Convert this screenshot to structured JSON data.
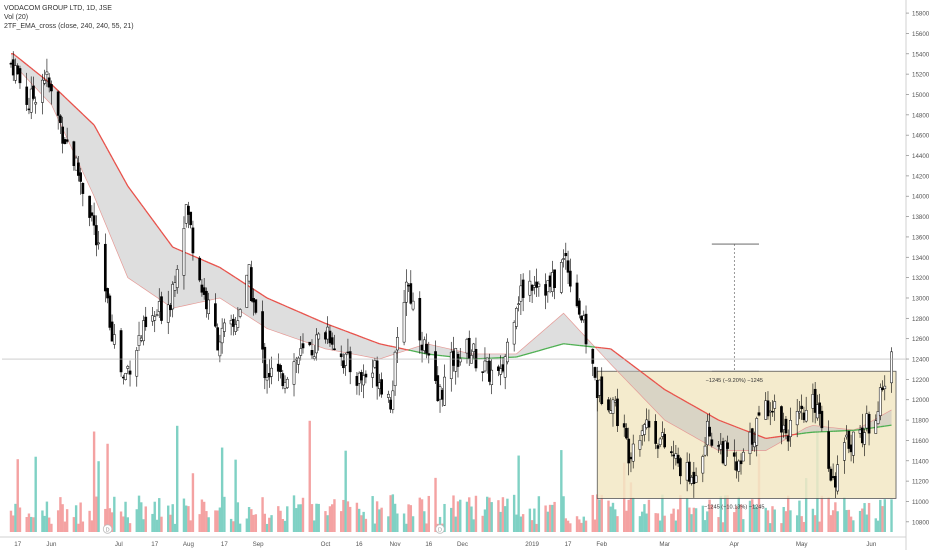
{
  "header": {
    "symbol_line": "VODACOM GROUP LTD, 1D, JSE",
    "volume_line": "Vol (20)",
    "indicator_line": "2TF_EMA_cross (close, 240, 240, 55, 21)"
  },
  "colors": {
    "up_candle": "#ffffff",
    "down_candle": "#000000",
    "candle_border": "#000000",
    "vol_up": "#7fd1c4",
    "vol_down": "#f4a2a2",
    "ema_slow_bear": "#e8514a",
    "ema_fast": "#4caf50",
    "cloud_fill": "#bdbdbd",
    "range_box_fill": "#f2e8c4",
    "range_box_border": "#555555"
  },
  "chart_data": {
    "type": "candlestick",
    "title": "VODACOM GROUP LTD, 1D, JSE",
    "y_ticks": [
      10800,
      11000,
      11200,
      11400,
      11600,
      11800,
      12000,
      12200,
      12400,
      12600,
      12800,
      13000,
      13200,
      13400,
      13600,
      13800,
      14000,
      14200,
      14400,
      14600,
      14800,
      15000,
      15200,
      15400,
      15600,
      15800
    ],
    "ylim": [
      10700,
      15850
    ],
    "current_price_line": 12400,
    "x_ticks": [
      {
        "label": "17",
        "date": "2018-05-17"
      },
      {
        "label": "Jun",
        "date": "2018-06-01"
      },
      {
        "label": "Jul",
        "date": "2018-07-01"
      },
      {
        "label": "17",
        "date": "2018-07-17"
      },
      {
        "label": "Aug",
        "date": "2018-08-01"
      },
      {
        "label": "17",
        "date": "2018-08-17"
      },
      {
        "label": "Sep",
        "date": "2018-09-01"
      },
      {
        "label": "Oct",
        "date": "2018-10-01"
      },
      {
        "label": "16",
        "date": "2018-10-16"
      },
      {
        "label": "Nov",
        "date": "2018-11-01"
      },
      {
        "label": "16",
        "date": "2018-11-16"
      },
      {
        "label": "Dec",
        "date": "2018-12-01"
      },
      {
        "label": "2019",
        "date": "2019-01-01"
      },
      {
        "label": "17",
        "date": "2019-01-17"
      },
      {
        "label": "Feb",
        "date": "2019-02-01"
      },
      {
        "label": "Mar",
        "date": "2019-03-01"
      },
      {
        "label": "Apr",
        "date": "2019-04-01"
      },
      {
        "label": "May",
        "date": "2019-05-01"
      },
      {
        "label": "Jun",
        "date": "2019-06-01"
      }
    ],
    "close_path": [
      {
        "date": "2018-05-15",
        "close": 15300
      },
      {
        "date": "2018-05-22",
        "close": 14900
      },
      {
        "date": "2018-05-29",
        "close": 15200
      },
      {
        "date": "2018-06-05",
        "close": 14700
      },
      {
        "date": "2018-06-12",
        "close": 14300
      },
      {
        "date": "2018-06-19",
        "close": 13800
      },
      {
        "date": "2018-06-26",
        "close": 12900
      },
      {
        "date": "2018-07-03",
        "close": 12200
      },
      {
        "date": "2018-07-10",
        "close": 12600
      },
      {
        "date": "2018-07-17",
        "close": 12800
      },
      {
        "date": "2018-07-24",
        "close": 13000
      },
      {
        "date": "2018-07-31",
        "close": 13900
      },
      {
        "date": "2018-08-07",
        "close": 13100
      },
      {
        "date": "2018-08-14",
        "close": 12600
      },
      {
        "date": "2018-08-21",
        "close": 12700
      },
      {
        "date": "2018-08-28",
        "close": 13200
      },
      {
        "date": "2018-09-04",
        "close": 12300
      },
      {
        "date": "2018-09-11",
        "close": 12200
      },
      {
        "date": "2018-09-18",
        "close": 12400
      },
      {
        "date": "2018-09-25",
        "close": 12500
      },
      {
        "date": "2018-10-02",
        "close": 12700
      },
      {
        "date": "2018-10-09",
        "close": 12400
      },
      {
        "date": "2018-10-16",
        "close": 12200
      },
      {
        "date": "2018-10-23",
        "close": 12300
      },
      {
        "date": "2018-10-30",
        "close": 12000
      },
      {
        "date": "2018-11-06",
        "close": 13200
      },
      {
        "date": "2018-11-13",
        "close": 12600
      },
      {
        "date": "2018-11-20",
        "close": 12000
      },
      {
        "date": "2018-11-27",
        "close": 12400
      },
      {
        "date": "2018-12-04",
        "close": 12500
      },
      {
        "date": "2018-12-11",
        "close": 12300
      },
      {
        "date": "2018-12-18",
        "close": 12200
      },
      {
        "date": "2018-12-25",
        "close": 13000
      },
      {
        "date": "2019-01-02",
        "close": 13200
      },
      {
        "date": "2019-01-09",
        "close": 13100
      },
      {
        "date": "2019-01-16",
        "close": 13400
      },
      {
        "date": "2019-01-23",
        "close": 12800
      },
      {
        "date": "2019-01-30",
        "close": 12100
      },
      {
        "date": "2019-02-06",
        "close": 12000
      },
      {
        "date": "2019-02-13",
        "close": 11500
      },
      {
        "date": "2019-02-20",
        "close": 11800
      },
      {
        "date": "2019-02-27",
        "close": 11600
      },
      {
        "date": "2019-03-06",
        "close": 11400
      },
      {
        "date": "2019-03-13",
        "close": 11200
      },
      {
        "date": "2019-03-20",
        "close": 11700
      },
      {
        "date": "2019-03-27",
        "close": 11500
      },
      {
        "date": "2019-04-03",
        "close": 11300
      },
      {
        "date": "2019-04-10",
        "close": 11700
      },
      {
        "date": "2019-04-17",
        "close": 12000
      },
      {
        "date": "2019-04-24",
        "close": 11700
      },
      {
        "date": "2019-05-01",
        "close": 11800
      },
      {
        "date": "2019-05-08",
        "close": 12000
      },
      {
        "date": "2019-05-15",
        "close": 11200
      },
      {
        "date": "2019-05-22",
        "close": 11600
      },
      {
        "date": "2019-05-29",
        "close": 11700
      },
      {
        "date": "2019-06-05",
        "close": 12000
      },
      {
        "date": "2019-06-10",
        "close": 12400
      }
    ],
    "ema_slow_path": [
      {
        "date": "2018-05-15",
        "value": 15400
      },
      {
        "date": "2018-06-01",
        "value": 15100
      },
      {
        "date": "2018-06-20",
        "value": 14700
      },
      {
        "date": "2018-07-05",
        "value": 14100
      },
      {
        "date": "2018-07-25",
        "value": 13500
      },
      {
        "date": "2018-08-15",
        "value": 13300
      },
      {
        "date": "2018-09-05",
        "value": 13000
      },
      {
        "date": "2018-10-01",
        "value": 12750
      },
      {
        "date": "2018-10-25",
        "value": 12550
      },
      {
        "date": "2018-11-15",
        "value": 12450
      },
      {
        "date": "2018-12-05",
        "value": 12400
      },
      {
        "date": "2018-12-25",
        "value": 12420
      },
      {
        "date": "2019-01-15",
        "value": 12550
      },
      {
        "date": "2019-02-05",
        "value": 12500
      },
      {
        "date": "2019-03-01",
        "value": 12100
      },
      {
        "date": "2019-03-25",
        "value": 11800
      },
      {
        "date": "2019-04-15",
        "value": 11620
      },
      {
        "date": "2019-05-05",
        "value": 11680
      },
      {
        "date": "2019-05-25",
        "value": 11700
      },
      {
        "date": "2019-06-10",
        "value": 11750
      }
    ],
    "ema_fast_path": [
      {
        "date": "2018-05-15",
        "value": 15300
      },
      {
        "date": "2018-06-01",
        "value": 14900
      },
      {
        "date": "2018-06-20",
        "value": 14000
      },
      {
        "date": "2018-07-05",
        "value": 13200
      },
      {
        "date": "2018-07-25",
        "value": 12900
      },
      {
        "date": "2018-08-15",
        "value": 13000
      },
      {
        "date": "2018-09-05",
        "value": 12700
      },
      {
        "date": "2018-10-01",
        "value": 12500
      },
      {
        "date": "2018-10-25",
        "value": 12400
      },
      {
        "date": "2018-11-15",
        "value": 12550
      },
      {
        "date": "2018-12-05",
        "value": 12450
      },
      {
        "date": "2018-12-25",
        "value": 12450
      },
      {
        "date": "2019-01-15",
        "value": 12850
      },
      {
        "date": "2019-02-05",
        "value": 12350
      },
      {
        "date": "2019-03-01",
        "value": 11800
      },
      {
        "date": "2019-03-25",
        "value": 11500
      },
      {
        "date": "2019-04-15",
        "value": 11500
      },
      {
        "date": "2019-05-05",
        "value": 11750
      },
      {
        "date": "2019-05-25",
        "value": 11700
      },
      {
        "date": "2019-06-10",
        "value": 11900
      }
    ],
    "range_box": {
      "from_date": "2019-01-30",
      "to_date": "2019-06-12",
      "high": 12280,
      "low": 11030,
      "label_top": "−1245 (−9.20%) −1245",
      "label_bottom": "−1245 (−10.13%) −1245"
    },
    "target_projection": {
      "date": "2019-04-01",
      "from": 12280,
      "to": 13530,
      "cap_from_date": "2019-03-22",
      "cap_to_date": "2019-04-12"
    },
    "event_markers": [
      {
        "date": "2018-06-26",
        "label": "D"
      },
      {
        "date": "2018-11-21",
        "label": "D"
      }
    ]
  }
}
